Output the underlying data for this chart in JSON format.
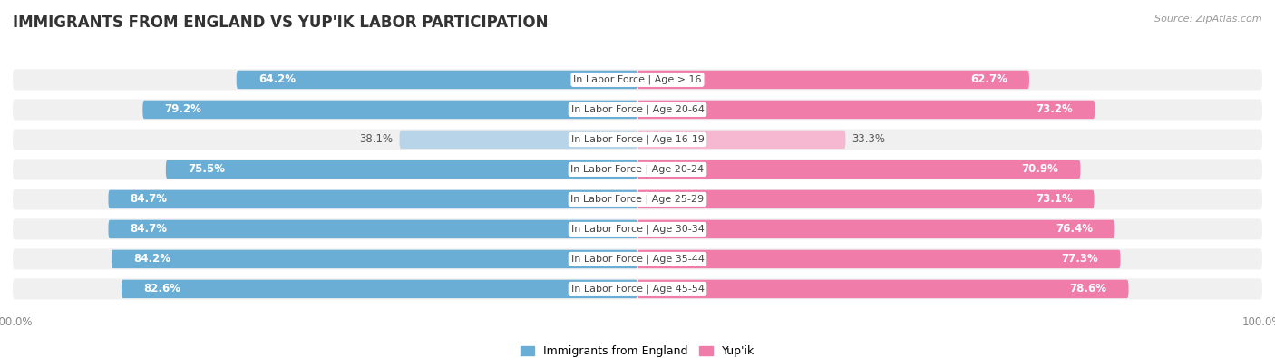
{
  "title": "IMMIGRANTS FROM ENGLAND VS YUP'IK LABOR PARTICIPATION",
  "source": "Source: ZipAtlas.com",
  "categories": [
    "In Labor Force | Age > 16",
    "In Labor Force | Age 20-64",
    "In Labor Force | Age 16-19",
    "In Labor Force | Age 20-24",
    "In Labor Force | Age 25-29",
    "In Labor Force | Age 30-34",
    "In Labor Force | Age 35-44",
    "In Labor Force | Age 45-54"
  ],
  "england_values": [
    64.2,
    79.2,
    38.1,
    75.5,
    84.7,
    84.7,
    84.2,
    82.6
  ],
  "yupik_values": [
    62.7,
    73.2,
    33.3,
    70.9,
    73.1,
    76.4,
    77.3,
    78.6
  ],
  "england_color": "#6aaed6",
  "england_color_light": "#b8d4e8",
  "yupik_color": "#f07caa",
  "yupik_color_light": "#f5b8d0",
  "bg_color": "#ffffff",
  "row_bg_color": "#f0f0f0",
  "max_val": 100.0,
  "bar_height": 0.62,
  "label_fontsize": 8.5,
  "cat_fontsize": 8.0,
  "title_fontsize": 12,
  "legend_fontsize": 9,
  "axis_label_fontsize": 8.5,
  "light_row_index": 2
}
